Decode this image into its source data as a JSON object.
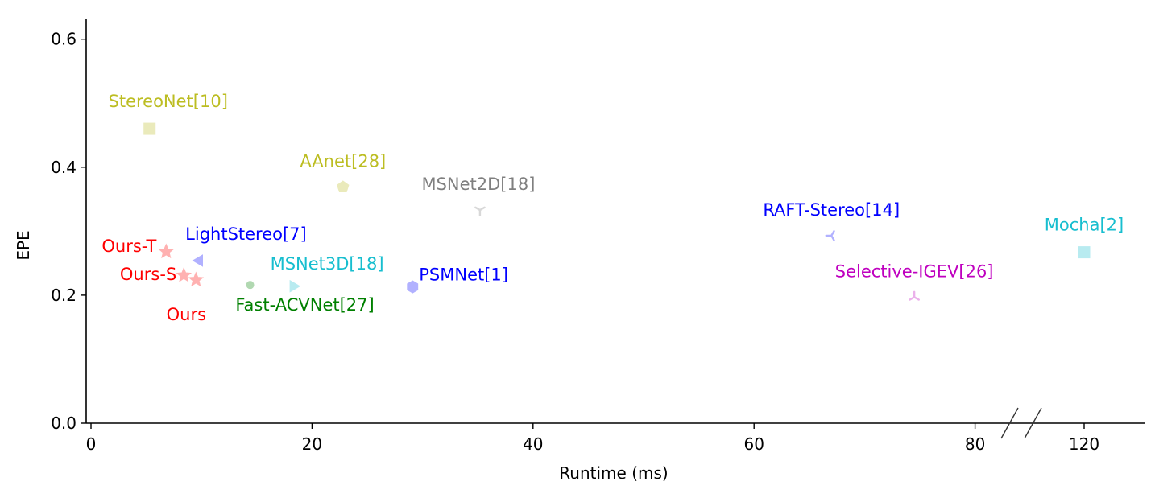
{
  "chart_data": {
    "type": "scatter",
    "xlabel": "Runtime (ms)",
    "ylabel": "EPE",
    "ylim": [
      0,
      0.62
    ],
    "x_axis_break": {
      "from": 84,
      "to": 116
    },
    "x_ticks": [
      {
        "value": 0,
        "label": "0"
      },
      {
        "value": 20,
        "label": "20"
      },
      {
        "value": 40,
        "label": "40"
      },
      {
        "value": 60,
        "label": "60"
      },
      {
        "value": 80,
        "label": "80"
      },
      {
        "value": 120,
        "label": "120"
      }
    ],
    "y_ticks": [
      {
        "value": 0.0,
        "label": "0.0"
      },
      {
        "value": 0.2,
        "label": "0.2"
      },
      {
        "value": 0.4,
        "label": "0.4"
      },
      {
        "value": 0.6,
        "label": "0.6"
      }
    ],
    "grid": false,
    "points": [
      {
        "label": "StereoNet[10]",
        "x": 5.3,
        "y": 0.46,
        "marker": "square",
        "color": "#bcbd22",
        "label_position": "above"
      },
      {
        "label": "AAnet[28]",
        "x": 22.8,
        "y": 0.369,
        "marker": "pentagon",
        "color": "#bcbd22",
        "label_position": "above"
      },
      {
        "label": "MSNet2D[18]",
        "x": 35.2,
        "y": 0.333,
        "marker": "tri_down",
        "color": "#7f7f7f",
        "label_position": "above"
      },
      {
        "label": "RAFT-Stereo[14]",
        "x": 67.0,
        "y": 0.293,
        "marker": "tri_left",
        "color": "#0000ff",
        "label_position": "above"
      },
      {
        "label": "Mocha[2]",
        "x": 120,
        "y": 0.267,
        "marker": "square",
        "color": "#17becf",
        "label_position": "above"
      },
      {
        "label": "LightStereo[7]",
        "x": 9.8,
        "y": 0.254,
        "marker": "triangle_left",
        "color": "#0000ff",
        "label_position": "above"
      },
      {
        "label": "Ours-T",
        "x": 6.8,
        "y": 0.268,
        "marker": "star",
        "color": "#ff0000",
        "label_position": "left"
      },
      {
        "label": "Ours-S",
        "x": 8.4,
        "y": 0.231,
        "marker": "star",
        "color": "#ff0000",
        "label_position": "left"
      },
      {
        "label": "Ours",
        "x": 9.5,
        "y": 0.224,
        "marker": "star",
        "color": "#ff0000",
        "label_position": "below"
      },
      {
        "label": "Fast-ACVNet[27]",
        "x": 14.4,
        "y": 0.216,
        "marker": "circle",
        "color": "#008000",
        "label_position": "below"
      },
      {
        "label": "MSNet3D[18]",
        "x": 18.3,
        "y": 0.214,
        "marker": "triangle_right",
        "color": "#17becf",
        "label_position": "above"
      },
      {
        "label": "PSMNet[1]",
        "x": 29.1,
        "y": 0.213,
        "marker": "hexagon",
        "color": "#0000ff",
        "label_position": "right"
      },
      {
        "label": "Selective-IGEV[26]",
        "x": 74.5,
        "y": 0.197,
        "marker": "tri_up",
        "color": "#bf00bf",
        "label_position": "above"
      }
    ]
  }
}
